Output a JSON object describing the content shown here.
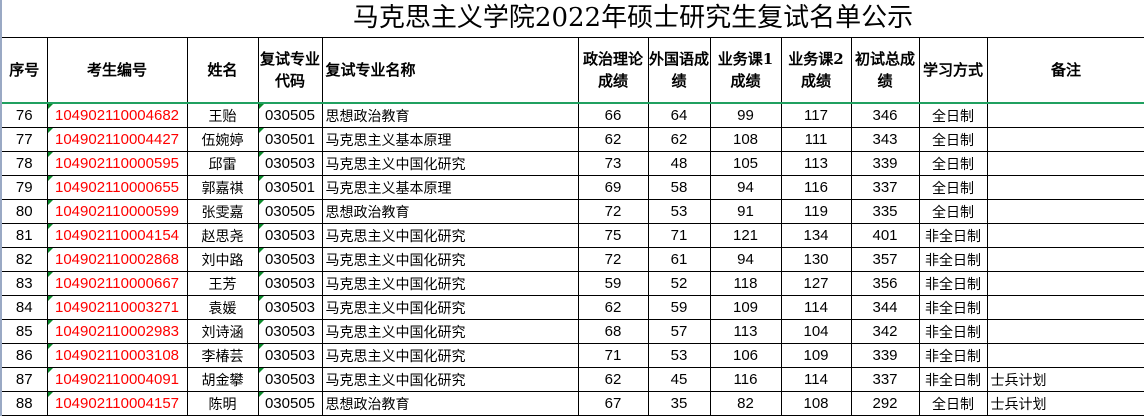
{
  "title": "马克思主义学院2022年硕士研究生复试名单公示",
  "headers": [
    "序号",
    "考生编号",
    "姓名",
    "复试专业代码",
    "复试专业名称",
    "政治理论成绩",
    "外国语成绩",
    "业务课1成绩",
    "业务课2成绩",
    "初试总成绩",
    "学习方式",
    "备注"
  ],
  "rows": [
    {
      "no": "76",
      "id": "104902110004682",
      "name": "王贻",
      "code": "030505",
      "major": "思想政治教育",
      "pol": "66",
      "lang": "64",
      "c1": "99",
      "c2": "117",
      "total": "346",
      "mode": "全日制",
      "note": ""
    },
    {
      "no": "77",
      "id": "104902110004427",
      "name": "伍婉婷",
      "code": "030501",
      "major": "马克思主义基本原理",
      "pol": "62",
      "lang": "62",
      "c1": "108",
      "c2": "111",
      "total": "343",
      "mode": "全日制",
      "note": ""
    },
    {
      "no": "78",
      "id": "104902110000595",
      "name": "邱雷",
      "code": "030503",
      "major": "马克思主义中国化研究",
      "pol": "73",
      "lang": "48",
      "c1": "105",
      "c2": "113",
      "total": "339",
      "mode": "全日制",
      "note": ""
    },
    {
      "no": "79",
      "id": "104902110000655",
      "name": "郭嘉祺",
      "code": "030501",
      "major": "马克思主义基本原理",
      "pol": "69",
      "lang": "58",
      "c1": "94",
      "c2": "116",
      "total": "337",
      "mode": "全日制",
      "note": ""
    },
    {
      "no": "80",
      "id": "104902110000599",
      "name": "张雯嘉",
      "code": "030505",
      "major": "思想政治教育",
      "pol": "72",
      "lang": "53",
      "c1": "91",
      "c2": "119",
      "total": "335",
      "mode": "全日制",
      "note": ""
    },
    {
      "no": "81",
      "id": "104902110004154",
      "name": "赵思尧",
      "code": "030503",
      "major": "马克思主义中国化研究",
      "pol": "75",
      "lang": "71",
      "c1": "121",
      "c2": "134",
      "total": "401",
      "mode": "非全日制",
      "note": ""
    },
    {
      "no": "82",
      "id": "104902110002868",
      "name": "刘中路",
      "code": "030503",
      "major": "马克思主义中国化研究",
      "pol": "72",
      "lang": "61",
      "c1": "94",
      "c2": "130",
      "total": "357",
      "mode": "非全日制",
      "note": ""
    },
    {
      "no": "83",
      "id": "104902110000667",
      "name": "王芳",
      "code": "030503",
      "major": "马克思主义中国化研究",
      "pol": "59",
      "lang": "52",
      "c1": "118",
      "c2": "127",
      "total": "356",
      "mode": "非全日制",
      "note": ""
    },
    {
      "no": "84",
      "id": "104902110003271",
      "name": "袁媛",
      "code": "030503",
      "major": "马克思主义中国化研究",
      "pol": "62",
      "lang": "59",
      "c1": "109",
      "c2": "114",
      "total": "344",
      "mode": "非全日制",
      "note": ""
    },
    {
      "no": "85",
      "id": "104902110002983",
      "name": "刘诗涵",
      "code": "030503",
      "major": "马克思主义中国化研究",
      "pol": "68",
      "lang": "57",
      "c1": "113",
      "c2": "104",
      "total": "342",
      "mode": "非全日制",
      "note": ""
    },
    {
      "no": "86",
      "id": "104902110003108",
      "name": "李椿芸",
      "code": "030503",
      "major": "马克思主义中国化研究",
      "pol": "71",
      "lang": "53",
      "c1": "106",
      "c2": "109",
      "total": "339",
      "mode": "非全日制",
      "note": ""
    },
    {
      "no": "87",
      "id": "104902110004091",
      "name": "胡金攀",
      "code": "030503",
      "major": "马克思主义中国化研究",
      "pol": "62",
      "lang": "45",
      "c1": "116",
      "c2": "114",
      "total": "337",
      "mode": "非全日制",
      "note": "士兵计划"
    },
    {
      "no": "88",
      "id": "104902110004157",
      "name": "陈明",
      "code": "030505",
      "major": "思想政治教育",
      "pol": "67",
      "lang": "35",
      "c1": "82",
      "c2": "108",
      "total": "292",
      "mode": "全日制",
      "note": "士兵计划"
    }
  ],
  "colors": {
    "id_text": "#ff0000",
    "header_rule": "#20a060",
    "comment_flag": "#0a8a2a"
  }
}
